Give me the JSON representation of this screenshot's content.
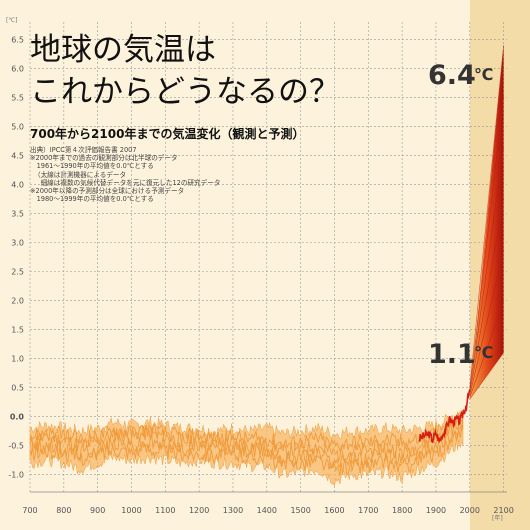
{
  "chart_data": {
    "type": "line",
    "title_lines": [
      "地球の気温は",
      "これからどうなるの？"
    ],
    "subtitle": "700年から2100年までの気温変化（観測と予測）",
    "notes": [
      "出典）IPCC第４次評価報告書 2007",
      "※2000年までの過去の観測部分は北半球のデータ",
      "　1961～1990年の平均値を0.0℃とする",
      "（太線は計測機器によるデータ",
      "　細線は複数の気候代替データを元に復元した12の研究データ",
      "※2000年以降の予測部分は全球における予測データ",
      "　1980～1999年の平均値を0.0℃とする"
    ],
    "y_unit": "[℃]",
    "x_unit": "[年]",
    "xlim": [
      700,
      2110
    ],
    "ylim": [
      -1.3,
      6.8
    ],
    "x_ticks": [
      700,
      800,
      900,
      1000,
      1100,
      1200,
      1300,
      1400,
      1500,
      1600,
      1700,
      1800,
      1900,
      2000,
      2100
    ],
    "y_ticks": [
      -1.0,
      -0.5,
      0.0,
      0.5,
      1.0,
      1.5,
      2.0,
      2.5,
      3.0,
      3.5,
      4.0,
      4.5,
      5.0,
      5.5,
      6.0,
      6.5
    ],
    "grid": true,
    "projection_start_year": 2000,
    "reconstruction_band": {
      "x": [
        700,
        750,
        800,
        850,
        900,
        950,
        1000,
        1050,
        1100,
        1150,
        1200,
        1250,
        1300,
        1350,
        1400,
        1450,
        1500,
        1550,
        1600,
        1650,
        1700,
        1750,
        1800,
        1850,
        1900,
        1950,
        1980
      ],
      "upper": [
        -0.2,
        -0.15,
        -0.2,
        -0.25,
        -0.2,
        -0.1,
        -0.15,
        -0.1,
        -0.15,
        -0.2,
        -0.2,
        -0.25,
        -0.2,
        -0.25,
        -0.2,
        -0.3,
        -0.25,
        -0.2,
        -0.3,
        -0.25,
        -0.25,
        -0.2,
        -0.25,
        -0.2,
        -0.15,
        0.0,
        0.1
      ],
      "lower": [
        -0.8,
        -0.75,
        -0.8,
        -0.9,
        -0.8,
        -0.7,
        -0.75,
        -0.7,
        -0.75,
        -0.8,
        -0.75,
        -0.8,
        -0.8,
        -0.85,
        -0.85,
        -1.0,
        -0.95,
        -0.9,
        -1.1,
        -1.0,
        -1.0,
        -0.95,
        -1.05,
        -0.9,
        -0.8,
        -0.55,
        -0.4
      ]
    },
    "reconstruction_lines": [
      [
        -0.45,
        -0.35,
        -0.4,
        -0.5,
        -0.42,
        -0.3,
        -0.35,
        -0.28,
        -0.35,
        -0.42,
        -0.4,
        -0.48,
        -0.45,
        -0.5,
        -0.48,
        -0.6,
        -0.55,
        -0.5,
        -0.65,
        -0.6,
        -0.58,
        -0.52,
        -0.6,
        -0.5,
        -0.38,
        -0.2,
        -0.1
      ],
      [
        -0.55,
        -0.5,
        -0.55,
        -0.62,
        -0.55,
        -0.45,
        -0.5,
        -0.45,
        -0.5,
        -0.55,
        -0.52,
        -0.58,
        -0.55,
        -0.6,
        -0.58,
        -0.72,
        -0.68,
        -0.62,
        -0.8,
        -0.72,
        -0.7,
        -0.65,
        -0.75,
        -0.62,
        -0.5,
        -0.3,
        -0.18
      ],
      [
        -0.35,
        -0.28,
        -0.32,
        -0.4,
        -0.35,
        -0.22,
        -0.28,
        -0.22,
        -0.28,
        -0.34,
        -0.32,
        -0.38,
        -0.35,
        -0.4,
        -0.38,
        -0.48,
        -0.44,
        -0.38,
        -0.5,
        -0.45,
        -0.45,
        -0.4,
        -0.45,
        -0.38,
        -0.28,
        -0.1,
        0.0
      ],
      [
        -0.65,
        -0.6,
        -0.62,
        -0.72,
        -0.65,
        -0.55,
        -0.6,
        -0.55,
        -0.6,
        -0.65,
        -0.62,
        -0.68,
        -0.65,
        -0.7,
        -0.68,
        -0.85,
        -0.8,
        -0.75,
        -0.92,
        -0.85,
        -0.85,
        -0.78,
        -0.88,
        -0.75,
        -0.62,
        -0.42,
        -0.28
      ]
    ],
    "instrumental": {
      "x": [
        1850,
        1860,
        1870,
        1880,
        1890,
        1900,
        1910,
        1920,
        1930,
        1940,
        1950,
        1960,
        1970,
        1980,
        1990,
        2000
      ],
      "y": [
        -0.38,
        -0.35,
        -0.32,
        -0.3,
        -0.4,
        -0.28,
        -0.42,
        -0.3,
        -0.2,
        -0.05,
        -0.1,
        -0.05,
        -0.08,
        0.05,
        0.2,
        0.45
      ]
    },
    "projection": {
      "x": [
        2000,
        2100
      ],
      "low": [
        0.3,
        1.1
      ],
      "high": [
        0.5,
        6.4
      ]
    },
    "callouts": [
      {
        "value": "1.1",
        "unit": "℃",
        "x": 2000,
        "y": 1.1
      },
      {
        "value": "6.4",
        "unit": "℃",
        "x": 2100,
        "y": 6.4
      }
    ],
    "colors": {
      "background": "#fdf3dd",
      "projection_bg": "#f3dca8",
      "grid": "#9a9a9a",
      "band": "#f7b765",
      "band_lines": "#f09a3a",
      "instrumental": "#d81e14",
      "projection_dark": "#c01a10",
      "projection_light": "#f08a2a"
    }
  }
}
